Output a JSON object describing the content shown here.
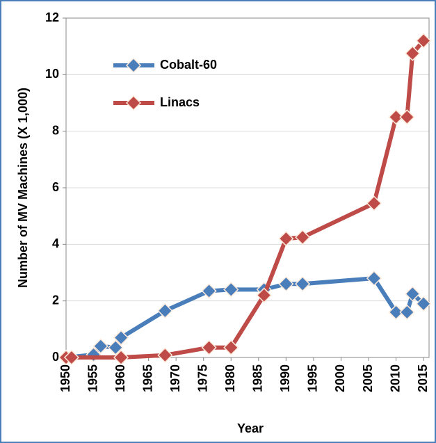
{
  "chart_data": {
    "type": "line",
    "x_label": "Year",
    "y_label": "Number of MV Machines (X 1,000)",
    "xlim": [
      1950,
      2016
    ],
    "xticks": [
      1950,
      1955,
      1960,
      1965,
      1970,
      1975,
      1980,
      1985,
      1990,
      1995,
      2000,
      2005,
      2010,
      2015
    ],
    "ylim": [
      0,
      12
    ],
    "yticks": [
      0,
      2,
      4,
      6,
      8,
      10,
      12
    ],
    "grid": true,
    "legend": "upper left",
    "series": [
      {
        "name": "Cobalt-60",
        "color": "#4a7ebb",
        "x": [
          1950,
          1955,
          1956.3,
          1959,
          1960,
          1968,
          1976,
          1980,
          1986,
          1990,
          1993,
          2006,
          2010,
          2012,
          2013,
          2015
        ],
        "values": [
          0,
          0.1,
          0.4,
          0.35,
          0.7,
          1.65,
          2.35,
          2.4,
          2.4,
          2.6,
          2.6,
          2.8,
          1.6,
          1.6,
          2.25,
          1.9
        ]
      },
      {
        "name": "Linacs",
        "color": "#be4b48",
        "x": [
          1950,
          1951,
          1960,
          1968,
          1976,
          1980,
          1986,
          1990,
          1993,
          2006,
          2010,
          2012,
          2013,
          2015
        ],
        "values": [
          0,
          0,
          0,
          0.08,
          0.35,
          0.35,
          2.2,
          4.2,
          4.25,
          5.45,
          8.5,
          8.5,
          10.75,
          11.2
        ]
      }
    ]
  }
}
